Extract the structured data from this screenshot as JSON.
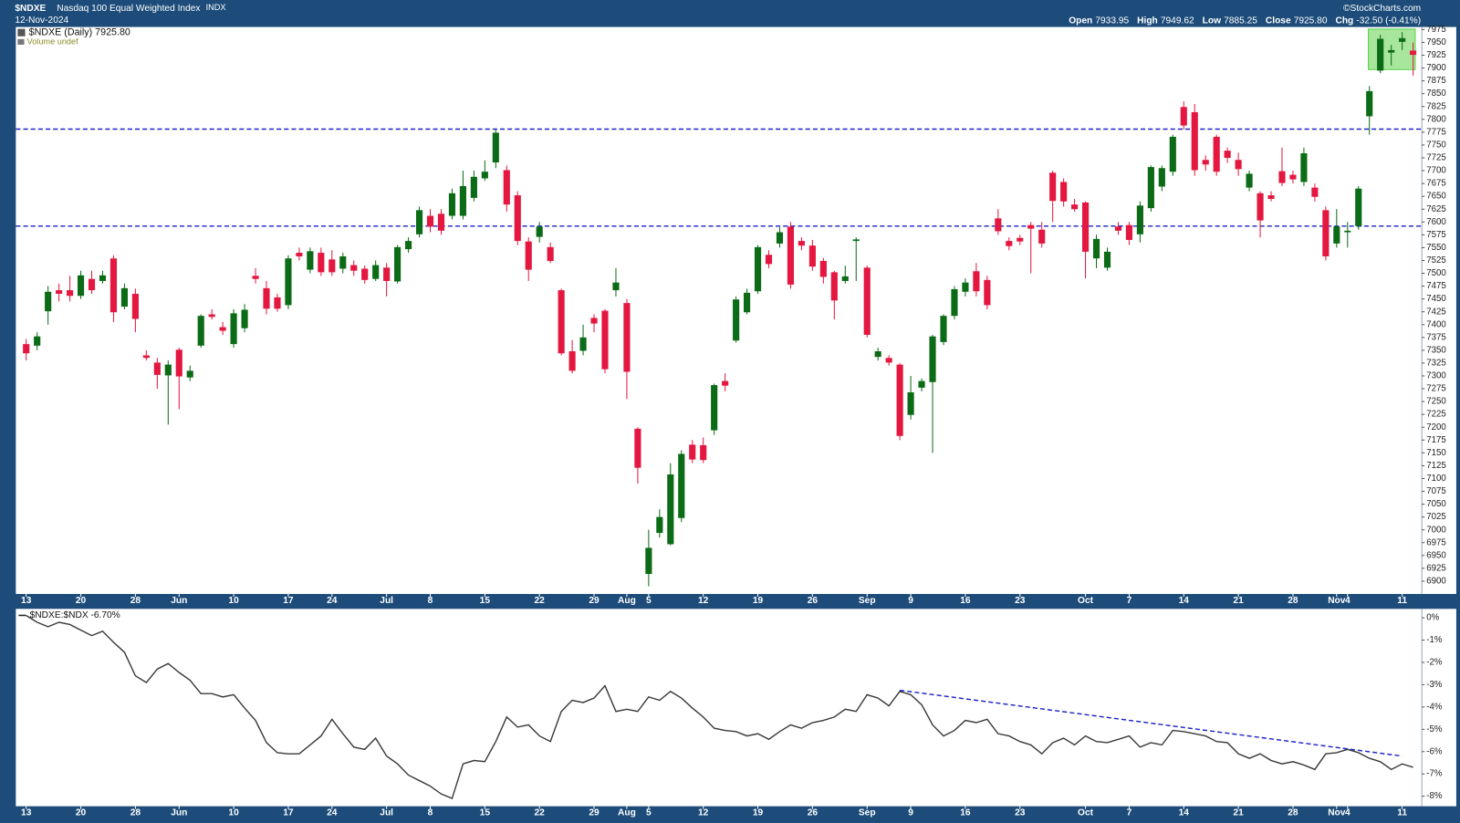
{
  "header": {
    "symbol": "$NDXE",
    "name": "Nasdaq 100 Equal Weighted Index",
    "exchange": "INDX",
    "date": "12-Nov-2024",
    "copyright": "©StockCharts.com",
    "quote": [
      {
        "label": "Open",
        "value": "7933.95"
      },
      {
        "label": "High",
        "value": "7949.62"
      },
      {
        "label": "Low",
        "value": "7885.25"
      },
      {
        "label": "Close",
        "value": "7925.80"
      },
      {
        "label": "Chg",
        "value": "-32.50 (-0.41%)"
      }
    ]
  },
  "chart_data": [
    {
      "type": "candlestick",
      "legend": "$NDXE (Daily) 7925.80",
      "volume_label": "Volume undef",
      "up_color": "#0c6b16",
      "down_color": "#e3173f",
      "xlim": [
        -0.95,
        127.8
      ],
      "ylim": [
        6875,
        7980
      ],
      "xticks": [
        {
          "value": 0,
          "label": "13"
        },
        {
          "value": 5,
          "label": "20"
        },
        {
          "value": 10,
          "label": "28"
        },
        {
          "value": 14,
          "label": "Jun"
        },
        {
          "value": 19,
          "label": "10"
        },
        {
          "value": 24,
          "label": "17"
        },
        {
          "value": 28,
          "label": "24"
        },
        {
          "value": 33,
          "label": "Jul"
        },
        {
          "value": 37,
          "label": "8"
        },
        {
          "value": 42,
          "label": "15"
        },
        {
          "value": 47,
          "label": "22"
        },
        {
          "value": 52,
          "label": "29"
        },
        {
          "value": 55,
          "label": "Aug"
        },
        {
          "value": 57,
          "label": "5"
        },
        {
          "value": 62,
          "label": "12"
        },
        {
          "value": 67,
          "label": "19"
        },
        {
          "value": 72,
          "label": "26"
        },
        {
          "value": 77,
          "label": "Sep"
        },
        {
          "value": 81,
          "label": "9"
        },
        {
          "value": 86,
          "label": "16"
        },
        {
          "value": 91,
          "label": "23"
        },
        {
          "value": 97,
          "label": "Oct"
        },
        {
          "value": 101,
          "label": "7"
        },
        {
          "value": 106,
          "label": "14"
        },
        {
          "value": 111,
          "label": "21"
        },
        {
          "value": 116,
          "label": "28"
        },
        {
          "value": 120,
          "label": "Nov"
        },
        {
          "value": 121,
          "label": "4"
        },
        {
          "value": 126,
          "label": "11"
        }
      ],
      "yticks": [
        6900,
        6925,
        6950,
        6975,
        7000,
        7025,
        7050,
        7075,
        7100,
        7125,
        7150,
        7175,
        7200,
        7225,
        7250,
        7275,
        7300,
        7325,
        7350,
        7375,
        7400,
        7425,
        7450,
        7475,
        7500,
        7525,
        7550,
        7575,
        7600,
        7625,
        7650,
        7675,
        7700,
        7725,
        7750,
        7775,
        7800,
        7825,
        7850,
        7875,
        7900,
        7925,
        7950,
        7975
      ],
      "reference_lines": [
        7781,
        7592
      ],
      "reference_color": "#1a22c8",
      "highlight": {
        "x": [
          122.9,
          127.2
        ],
        "y": [
          7897,
          7976
        ],
        "color": "#5fd24a"
      },
      "open": [
        7362,
        7359,
        7426,
        7467,
        7467,
        7456,
        7489,
        7485,
        7529,
        7435,
        7460,
        7340,
        7326,
        7301,
        7351,
        7297,
        7359,
        7420,
        7395,
        7362,
        7393,
        7495,
        7471,
        7453,
        7438,
        7540,
        7507,
        7540,
        7527,
        7509,
        7516,
        7509,
        7489,
        7511,
        7484,
        7547,
        7576,
        7612,
        7616,
        7612,
        7612,
        7647,
        7685,
        7716,
        7701,
        7652,
        7562,
        7571,
        7551,
        7467,
        7348,
        7349,
        7413,
        7427,
        7467,
        7442,
        7197,
        6914,
        6994,
        6972,
        7023,
        7166,
        7165,
        7194,
        7290,
        7369,
        7424,
        7465,
        7536,
        7558,
        7591,
        7563,
        7554,
        7524,
        7502,
        7485,
        7563,
        7511,
        7337,
        7335,
        7322,
        7224,
        7277,
        7288,
        7366,
        7417,
        7464,
        7504,
        7487,
        7607,
        7563,
        7569,
        7594,
        7585,
        7696,
        7678,
        7634,
        7638,
        7529,
        7511,
        7591,
        7594,
        7576,
        7627,
        7669,
        7698,
        7824,
        7814,
        7721,
        7766,
        7739,
        7721,
        7667,
        7656,
        7652,
        7699,
        7692,
        7678,
        7667,
        7623,
        7558,
        7580,
        7592,
        7806,
        7895,
        7930,
        7951,
        7933.95
      ],
      "high": [
        7372,
        7385,
        7475,
        7480,
        7495,
        7505,
        7505,
        7505,
        7535,
        7480,
        7470,
        7350,
        7335,
        7330,
        7355,
        7320,
        7420,
        7430,
        7405,
        7430,
        7440,
        7510,
        7485,
        7460,
        7535,
        7550,
        7550,
        7550,
        7545,
        7540,
        7525,
        7515,
        7525,
        7520,
        7555,
        7570,
        7630,
        7625,
        7625,
        7665,
        7700,
        7700,
        7720,
        7780,
        7710,
        7660,
        7570,
        7600,
        7560,
        7470,
        7370,
        7400,
        7420,
        7430,
        7510,
        7450,
        7200,
        7000,
        7040,
        7130,
        7155,
        7175,
        7180,
        7285,
        7305,
        7455,
        7470,
        7555,
        7545,
        7590,
        7600,
        7570,
        7565,
        7530,
        7505,
        7515,
        7570,
        7515,
        7355,
        7340,
        7325,
        7300,
        7295,
        7380,
        7420,
        7475,
        7490,
        7520,
        7495,
        7625,
        7570,
        7575,
        7600,
        7600,
        7700,
        7685,
        7645,
        7640,
        7575,
        7550,
        7600,
        7600,
        7640,
        7710,
        7710,
        7770,
        7835,
        7830,
        7730,
        7770,
        7745,
        7735,
        7700,
        7660,
        7660,
        7745,
        7700,
        7745,
        7675,
        7630,
        7625,
        7600,
        7670,
        7865,
        7965,
        7945,
        7970,
        7949.62
      ],
      "low": [
        7330,
        7350,
        7400,
        7445,
        7445,
        7450,
        7460,
        7480,
        7405,
        7430,
        7385,
        7330,
        7275,
        7205,
        7235,
        7290,
        7355,
        7410,
        7380,
        7355,
        7385,
        7480,
        7420,
        7425,
        7430,
        7525,
        7500,
        7495,
        7495,
        7500,
        7495,
        7480,
        7485,
        7455,
        7480,
        7540,
        7570,
        7580,
        7575,
        7605,
        7605,
        7640,
        7680,
        7705,
        7620,
        7555,
        7485,
        7560,
        7520,
        7340,
        7305,
        7340,
        7385,
        7305,
        7455,
        7255,
        7090,
        6890,
        6985,
        6970,
        7015,
        7130,
        7130,
        7185,
        7270,
        7365,
        7420,
        7460,
        7510,
        7550,
        7470,
        7545,
        7505,
        7480,
        7410,
        7480,
        7485,
        7375,
        7330,
        7320,
        7175,
        7215,
        7270,
        7150,
        7360,
        7410,
        7455,
        7455,
        7430,
        7575,
        7545,
        7555,
        7500,
        7550,
        7600,
        7630,
        7620,
        7490,
        7510,
        7505,
        7575,
        7555,
        7560,
        7620,
        7660,
        7690,
        7780,
        7690,
        7700,
        7690,
        7715,
        7690,
        7660,
        7570,
        7640,
        7670,
        7675,
        7670,
        7640,
        7525,
        7550,
        7550,
        7585,
        7770,
        7890,
        7905,
        7935,
        7885.25
      ],
      "close": [
        7344,
        7377,
        7464,
        7460,
        7456,
        7496,
        7467,
        7496,
        7424,
        7471,
        7411,
        7335,
        7302,
        7322,
        7299,
        7310,
        7417,
        7415,
        7388,
        7422,
        7429,
        7489,
        7431,
        7431,
        7529,
        7533,
        7543,
        7502,
        7502,
        7533,
        7505,
        7487,
        7516,
        7485,
        7551,
        7563,
        7623,
        7591,
        7583,
        7656,
        7670,
        7688,
        7698,
        7774,
        7634,
        7563,
        7507,
        7591,
        7524,
        7344,
        7310,
        7375,
        7402,
        7313,
        7482,
        7308,
        7121,
        6965,
        7025,
        7108,
        7148,
        7137,
        7136,
        7282,
        7281,
        7449,
        7462,
        7551,
        7518,
        7580,
        7478,
        7554,
        7513,
        7493,
        7447,
        7494,
        7566,
        7380,
        7348,
        7326,
        7183,
        7268,
        7290,
        7377,
        7417,
        7469,
        7482,
        7465,
        7438,
        7582,
        7553,
        7562,
        7587,
        7558,
        7641,
        7640,
        7625,
        7542,
        7567,
        7542,
        7583,
        7565,
        7632,
        7707,
        7705,
        7766,
        7788,
        7701,
        7712,
        7698,
        7725,
        7703,
        7694,
        7603,
        7645,
        7676,
        7683,
        7734,
        7649,
        7533,
        7591,
        7583,
        7665,
        7855,
        7957,
        7935,
        7958.3,
        7925.8
      ]
    },
    {
      "type": "line",
      "legend": "$NDXE:$NDX -6.70%",
      "color": "#3a3a3a",
      "xlim": [
        -0.95,
        127.8
      ],
      "ylim": [
        -8.45,
        0.4
      ],
      "xticks": [
        {
          "value": 0,
          "label": "13"
        },
        {
          "value": 5,
          "label": "20"
        },
        {
          "value": 10,
          "label": "28"
        },
        {
          "value": 14,
          "label": "Jun"
        },
        {
          "value": 19,
          "label": "10"
        },
        {
          "value": 24,
          "label": "17"
        },
        {
          "value": 28,
          "label": "24"
        },
        {
          "value": 33,
          "label": "Jul"
        },
        {
          "value": 37,
          "label": "8"
        },
        {
          "value": 42,
          "label": "15"
        },
        {
          "value": 47,
          "label": "22"
        },
        {
          "value": 52,
          "label": "29"
        },
        {
          "value": 55,
          "label": "Aug"
        },
        {
          "value": 57,
          "label": "5"
        },
        {
          "value": 62,
          "label": "12"
        },
        {
          "value": 67,
          "label": "19"
        },
        {
          "value": 72,
          "label": "26"
        },
        {
          "value": 77,
          "label": "Sep"
        },
        {
          "value": 81,
          "label": "9"
        },
        {
          "value": 86,
          "label": "16"
        },
        {
          "value": 91,
          "label": "23"
        },
        {
          "value": 97,
          "label": "Oct"
        },
        {
          "value": 101,
          "label": "7"
        },
        {
          "value": 106,
          "label": "14"
        },
        {
          "value": 111,
          "label": "21"
        },
        {
          "value": 116,
          "label": "28"
        },
        {
          "value": 120,
          "label": "Nov"
        },
        {
          "value": 121,
          "label": "4"
        },
        {
          "value": 126,
          "label": "11"
        }
      ],
      "yticks": [
        {
          "value": 0,
          "label": "0%"
        },
        {
          "value": -1,
          "label": "-1%"
        },
        {
          "value": -2,
          "label": "-2%"
        },
        {
          "value": -3,
          "label": "-3%"
        },
        {
          "value": -4,
          "label": "-4%"
        },
        {
          "value": -5,
          "label": "-5%"
        },
        {
          "value": -6,
          "label": "-6%"
        },
        {
          "value": -7,
          "label": "-7%"
        },
        {
          "value": -8,
          "label": "-8%"
        }
      ],
      "trendline": {
        "x": [
          80,
          126
        ],
        "y": [
          -3.25,
          -6.2
        ],
        "color": "#1a22c8"
      },
      "values": [
        0.1,
        -0.2,
        -0.4,
        -0.2,
        -0.3,
        -0.55,
        -0.8,
        -0.6,
        -1.1,
        -1.55,
        -2.6,
        -2.9,
        -2.3,
        -2.05,
        -2.45,
        -2.8,
        -3.4,
        -3.4,
        -3.55,
        -3.45,
        -4.05,
        -4.6,
        -5.6,
        -6.05,
        -6.1,
        -6.1,
        -5.7,
        -5.3,
        -4.55,
        -5.2,
        -5.8,
        -5.9,
        -5.4,
        -6.2,
        -6.55,
        -7.05,
        -7.3,
        -7.55,
        -7.9,
        -8.1,
        -6.55,
        -6.4,
        -6.45,
        -5.55,
        -4.45,
        -4.9,
        -4.8,
        -5.3,
        -5.55,
        -4.2,
        -3.7,
        -3.8,
        -3.6,
        -3.05,
        -4.2,
        -4.1,
        -4.2,
        -3.55,
        -3.7,
        -3.3,
        -3.6,
        -4.05,
        -4.45,
        -4.95,
        -5.05,
        -5.1,
        -5.3,
        -5.2,
        -5.45,
        -5.1,
        -4.8,
        -4.95,
        -4.7,
        -4.6,
        -4.45,
        -4.1,
        -4.2,
        -3.45,
        -3.6,
        -3.95,
        -3.3,
        -3.45,
        -3.9,
        -4.8,
        -5.3,
        -5.05,
        -4.6,
        -4.7,
        -4.55,
        -5.2,
        -5.3,
        -5.55,
        -5.7,
        -6.1,
        -5.6,
        -5.4,
        -5.7,
        -5.3,
        -5.55,
        -5.6,
        -5.45,
        -5.3,
        -5.8,
        -5.6,
        -5.7,
        -5.05,
        -5.1,
        -5.2,
        -5.3,
        -5.55,
        -5.6,
        -6.1,
        -6.3,
        -6.1,
        -6.4,
        -6.55,
        -6.45,
        -6.6,
        -6.8,
        -6.1,
        -6.05,
        -5.9,
        -6.05,
        -6.3,
        -6.45,
        -6.8,
        -6.55,
        -6.7
      ]
    }
  ]
}
